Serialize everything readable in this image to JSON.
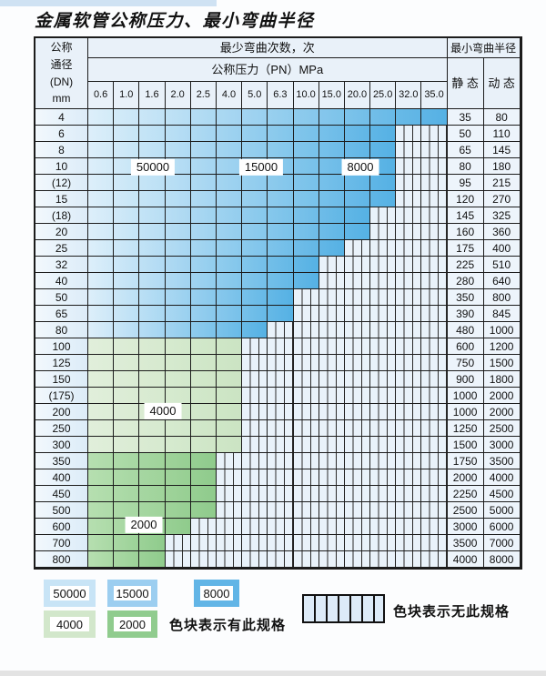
{
  "page": {
    "title": "金属软管公称压力、最小弯曲半径"
  },
  "table": {
    "header": {
      "dn_lines": [
        "公称",
        "通径",
        "(DN)",
        "mm"
      ],
      "bend_cycles": "最少弯曲次数，次",
      "pressure": "公称压力（PN）MPa",
      "radius": "最小弯曲半径",
      "static": "静 态",
      "dynamic": "动 态",
      "pressure_cols": [
        "0.6",
        "1.0",
        "1.6",
        "2.0",
        "2.5",
        "4.0",
        "5.0",
        "6.3",
        "10.0",
        "15.0",
        "20.0",
        "25.0",
        "32.0",
        "35.0"
      ]
    },
    "rows": [
      {
        "dn": "4",
        "zone": "blue",
        "colored": 14,
        "static": "35",
        "dynamic": "80"
      },
      {
        "dn": "6",
        "zone": "blue",
        "colored": 12,
        "static": "50",
        "dynamic": "110"
      },
      {
        "dn": "8",
        "zone": "blue",
        "colored": 12,
        "static": "65",
        "dynamic": "145"
      },
      {
        "dn": "10",
        "zone": "blue",
        "colored": 12,
        "static": "80",
        "dynamic": "180"
      },
      {
        "dn": "(12)",
        "zone": "blue",
        "colored": 12,
        "static": "95",
        "dynamic": "215"
      },
      {
        "dn": "15",
        "zone": "blue",
        "colored": 12,
        "static": "120",
        "dynamic": "270"
      },
      {
        "dn": "(18)",
        "zone": "blue",
        "colored": 11,
        "static": "145",
        "dynamic": "325"
      },
      {
        "dn": "20",
        "zone": "blue",
        "colored": 11,
        "static": "160",
        "dynamic": "360"
      },
      {
        "dn": "25",
        "zone": "blue",
        "colored": 10,
        "static": "175",
        "dynamic": "400"
      },
      {
        "dn": "32",
        "zone": "blue",
        "colored": 9,
        "static": "225",
        "dynamic": "510"
      },
      {
        "dn": "40",
        "zone": "blue",
        "colored": 9,
        "static": "280",
        "dynamic": "640"
      },
      {
        "dn": "50",
        "zone": "blue",
        "colored": 8,
        "static": "350",
        "dynamic": "800"
      },
      {
        "dn": "65",
        "zone": "blue",
        "colored": 8,
        "static": "390",
        "dynamic": "845"
      },
      {
        "dn": "80",
        "zone": "blue",
        "colored": 7,
        "static": "480",
        "dynamic": "1000"
      },
      {
        "dn": "100",
        "zone": "green_light",
        "colored": 6,
        "static": "600",
        "dynamic": "1200"
      },
      {
        "dn": "125",
        "zone": "green_light",
        "colored": 6,
        "static": "750",
        "dynamic": "1500"
      },
      {
        "dn": "150",
        "zone": "green_light",
        "colored": 6,
        "static": "900",
        "dynamic": "1800"
      },
      {
        "dn": "(175)",
        "zone": "green_light",
        "colored": 6,
        "static": "1000",
        "dynamic": "2000"
      },
      {
        "dn": "200",
        "zone": "green_light",
        "colored": 6,
        "static": "1000",
        "dynamic": "2000"
      },
      {
        "dn": "250",
        "zone": "green_light",
        "colored": 6,
        "static": "1250",
        "dynamic": "2500"
      },
      {
        "dn": "300",
        "zone": "green_light",
        "colored": 6,
        "static": "1500",
        "dynamic": "3000"
      },
      {
        "dn": "350",
        "zone": "green_dark",
        "colored": 5,
        "static": "1750",
        "dynamic": "3500"
      },
      {
        "dn": "400",
        "zone": "green_dark",
        "colored": 5,
        "static": "2000",
        "dynamic": "4000"
      },
      {
        "dn": "450",
        "zone": "green_dark",
        "colored": 5,
        "static": "2250",
        "dynamic": "4500"
      },
      {
        "dn": "500",
        "zone": "green_dark",
        "colored": 5,
        "static": "2500",
        "dynamic": "5000"
      },
      {
        "dn": "600",
        "zone": "green_dark",
        "colored": 4,
        "static": "3000",
        "dynamic": "6000"
      },
      {
        "dn": "700",
        "zone": "green_dark",
        "colored": 3,
        "static": "3500",
        "dynamic": "7000"
      },
      {
        "dn": "800",
        "zone": "green_dark",
        "colored": 3,
        "static": "4000",
        "dynamic": "8000"
      }
    ]
  },
  "overlay_labels": [
    "50000",
    "15000",
    "8000",
    "4000",
    "2000"
  ],
  "legend": {
    "swatches": [
      {
        "label": "50000",
        "color": "#c8e4f6"
      },
      {
        "label": "15000",
        "color": "#9ccef0"
      },
      {
        "label": "8000",
        "color": "#62b5e6"
      },
      {
        "label": "4000",
        "color": "#d2e7cb"
      },
      {
        "label": "2000",
        "color": "#90cc8e"
      }
    ],
    "available_note": "色块表示有此规格",
    "unavailable_note": "色块表示无此规格"
  },
  "colors": {
    "zones": {
      "blue": {
        "start": "#ddeffa",
        "end": "#55b1e4"
      },
      "green_light": {
        "start": "#e1efdb",
        "end": "#cbe4c3"
      },
      "green_dark": {
        "start": "#b6dfb0",
        "end": "#8fcb8c"
      }
    },
    "hatch_bg": "#e9f2fa",
    "grid_line": "#1c1c1c",
    "header_bg": "#e9f1f9",
    "top_strip": "#cfe2f3"
  },
  "chart_data": {
    "type": "table",
    "title": "金属软管公称压力、最小弯曲半径",
    "pressure_columns_MPa": [
      0.6,
      1.0,
      1.6,
      2.0,
      2.5,
      4.0,
      5.0,
      6.3,
      10.0,
      15.0,
      20.0,
      25.0,
      32.0,
      35.0
    ],
    "bend_cycle_levels": [
      50000,
      15000,
      8000,
      4000,
      2000
    ],
    "notes": [
      "色块表示有此规格",
      "色块表示无此规格"
    ]
  }
}
